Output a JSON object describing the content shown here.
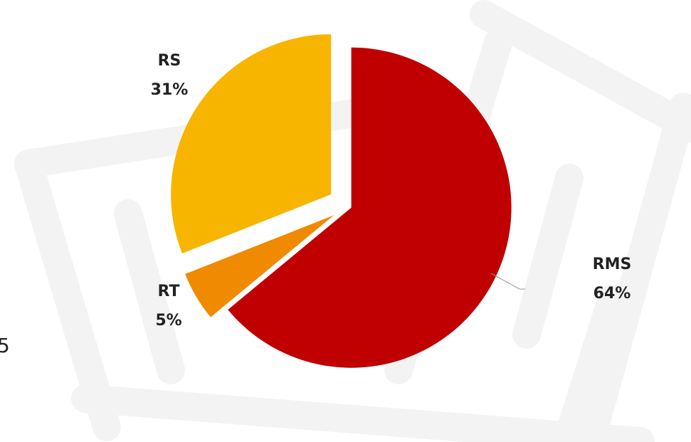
{
  "chart_data": {
    "type": "pie",
    "categories": [
      "RMS",
      "RT",
      "RS"
    ],
    "values": [
      64,
      5,
      31
    ],
    "value_labels": [
      "64%",
      "5%",
      "31%"
    ],
    "colors": [
      "#c00000",
      "#f08a00",
      "#f8b500"
    ],
    "annotations": [
      "5"
    ]
  }
}
